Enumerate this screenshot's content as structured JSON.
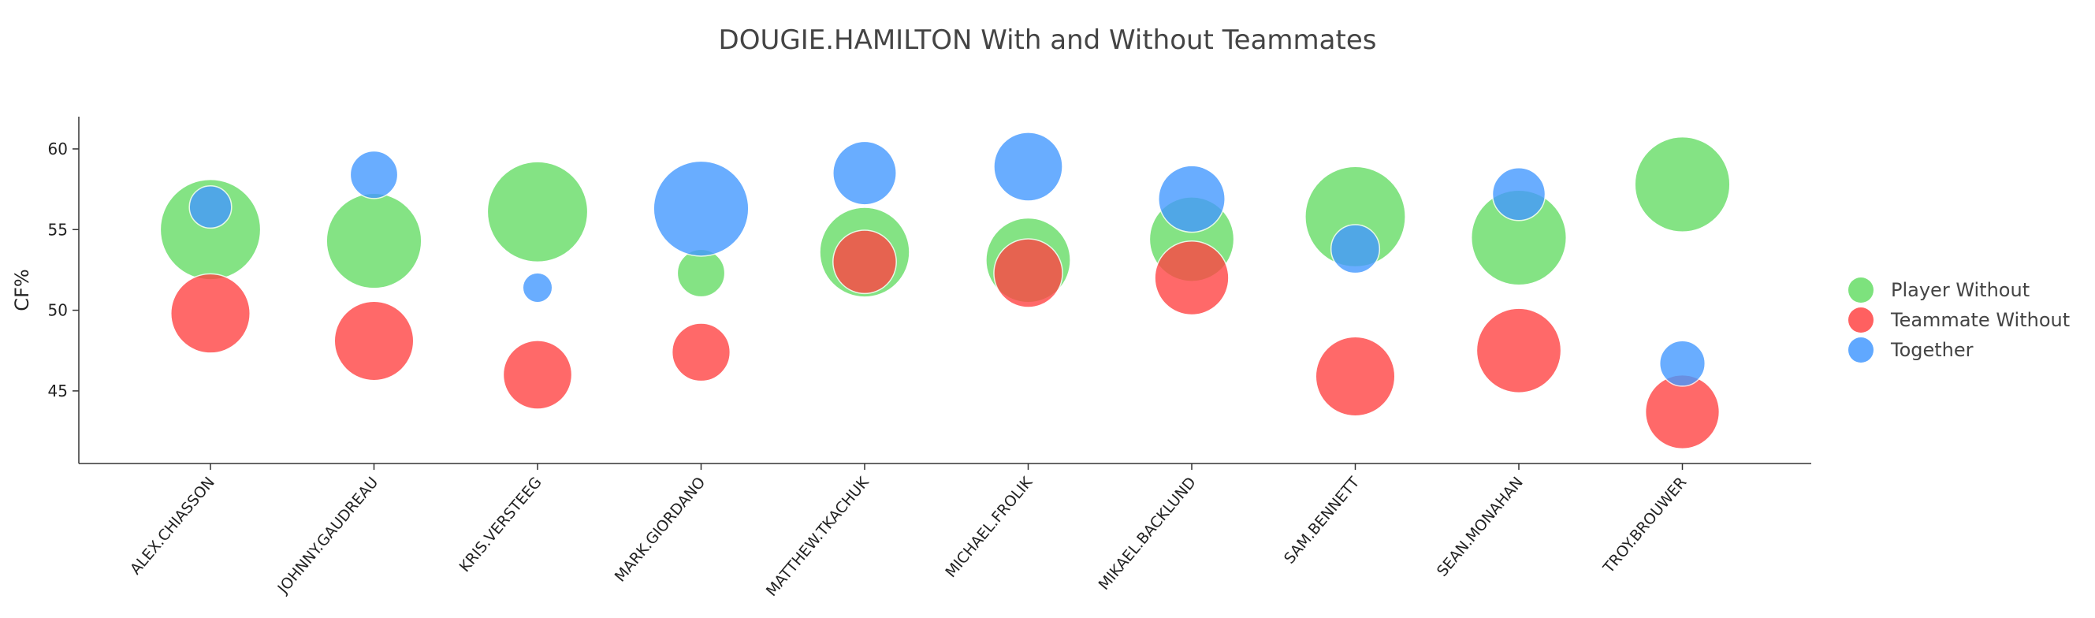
{
  "chart_data": {
    "type": "scatter",
    "title": "DOUGIE.HAMILTON With and Without Teammates",
    "xlabel": "",
    "ylabel": "CF%",
    "ylim": [
      40.5,
      62
    ],
    "yticks": [
      45,
      50,
      55,
      60
    ],
    "categories": [
      "ALEX.CHIASSON",
      "JOHNNY.GAUDREAU",
      "KRIS.VERSTEEG",
      "MARK.GIORDANO",
      "MATTHEW.TKACHUK",
      "MICHAEL.FROLIK",
      "MIKAEL.BACKLUND",
      "SAM.BENNETT",
      "SEAN.MONAHAN",
      "TROY.BROUWER"
    ],
    "legend_position": "right",
    "size_note": "bubble size relative units",
    "series": [
      {
        "name": "Player Without",
        "color": "#66dd66",
        "values": [
          55.0,
          54.3,
          56.1,
          52.3,
          53.6,
          53.1,
          54.4,
          55.8,
          54.5,
          57.8
        ],
        "sizes": [
          9.5,
          9.0,
          9.5,
          4.5,
          8.5,
          8.0,
          8.0,
          9.5,
          9.0,
          9.0
        ]
      },
      {
        "name": "Teammate Without",
        "color": "#ff4444",
        "values": [
          49.8,
          48.1,
          46.0,
          47.4,
          53.0,
          52.3,
          52.0,
          45.9,
          47.5,
          43.7
        ],
        "sizes": [
          7.5,
          7.5,
          6.5,
          5.5,
          6.0,
          6.5,
          7.0,
          7.5,
          8.0,
          7.0
        ]
      },
      {
        "name": "Together",
        "color": "#4499ff",
        "values": [
          56.4,
          58.4,
          51.4,
          56.3,
          58.5,
          58.9,
          56.9,
          53.8,
          57.2,
          46.7
        ],
        "sizes": [
          4.0,
          4.5,
          2.8,
          9.0,
          6.0,
          6.5,
          6.3,
          4.6,
          5.0,
          4.3
        ]
      }
    ]
  }
}
